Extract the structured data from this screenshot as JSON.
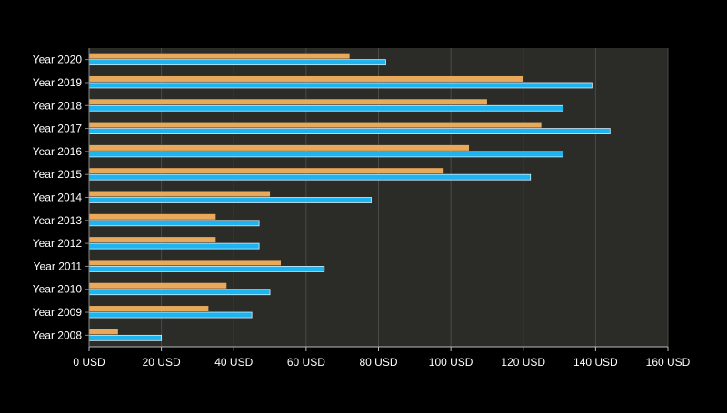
{
  "chart_data": {
    "type": "bar",
    "orientation": "horizontal",
    "categories": [
      "Year 2020",
      "Year 2019",
      "Year 2018",
      "Year 2017",
      "Year 2016",
      "Year 2015",
      "Year 2014",
      "Year 2013",
      "Year 2012",
      "Year 2011",
      "Year 2010",
      "Year 2009",
      "Year 2008"
    ],
    "series": [
      {
        "color": "#E8A95A",
        "values": [
          72,
          120,
          110,
          125,
          105,
          98,
          50,
          35,
          35,
          53,
          38,
          33,
          8
        ]
      },
      {
        "color": "#1EB4F0",
        "values": [
          82,
          139,
          131,
          144,
          131,
          122,
          78,
          47,
          47,
          65,
          50,
          45,
          20
        ]
      }
    ],
    "x_ticks": [
      "0 USD",
      "20 USD",
      "40 USD",
      "60 USD",
      "80 USD",
      "100 USD",
      "120 USD",
      "140 USD",
      "160 USD"
    ],
    "xlim": [
      0,
      160
    ],
    "grid": "vertical",
    "plot_background": "#2B2B28"
  }
}
